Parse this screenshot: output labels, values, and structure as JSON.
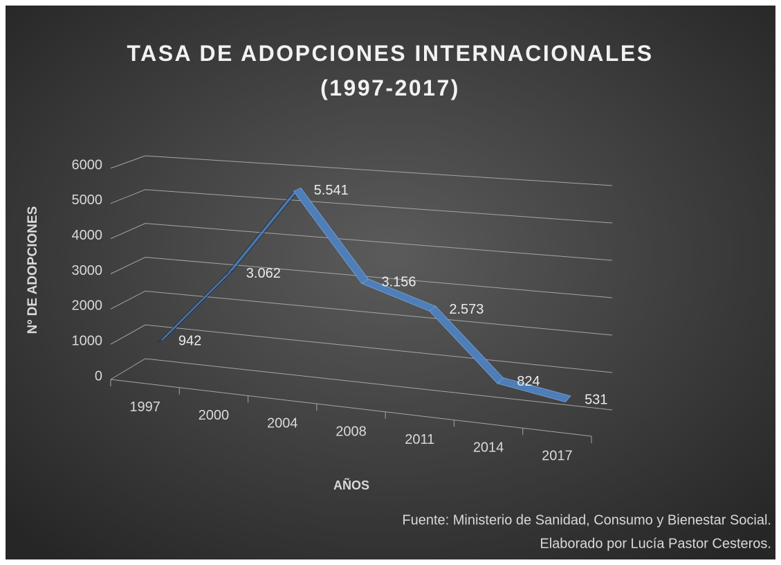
{
  "chart_data": {
    "type": "line3d",
    "title": "TASA DE ADOPCIONES INTERNACIONALES (1997-2017)",
    "y_label": "Nº DE ADOPCIONES",
    "x_label": "AÑOS",
    "annotations": [
      "Fuente: Ministerio de Sanidad, Consumo y Bienestar Social.",
      "Elaborado por Lucía Pastor Cesteros."
    ],
    "categories": [
      "1997",
      "2000",
      "2004",
      "2008",
      "2011",
      "2014",
      "2017"
    ],
    "values": [
      942,
      3062,
      5541,
      3156,
      2573,
      824,
      531
    ],
    "value_labels": [
      "942",
      "3.062",
      "5.541",
      "3.156",
      "2.573",
      "824",
      "531"
    ],
    "color": "#4f81bd",
    "ylim": [
      0,
      6000
    ],
    "yticks": [
      0,
      1000,
      2000,
      3000,
      4000,
      5000,
      6000
    ],
    "grid": true
  }
}
